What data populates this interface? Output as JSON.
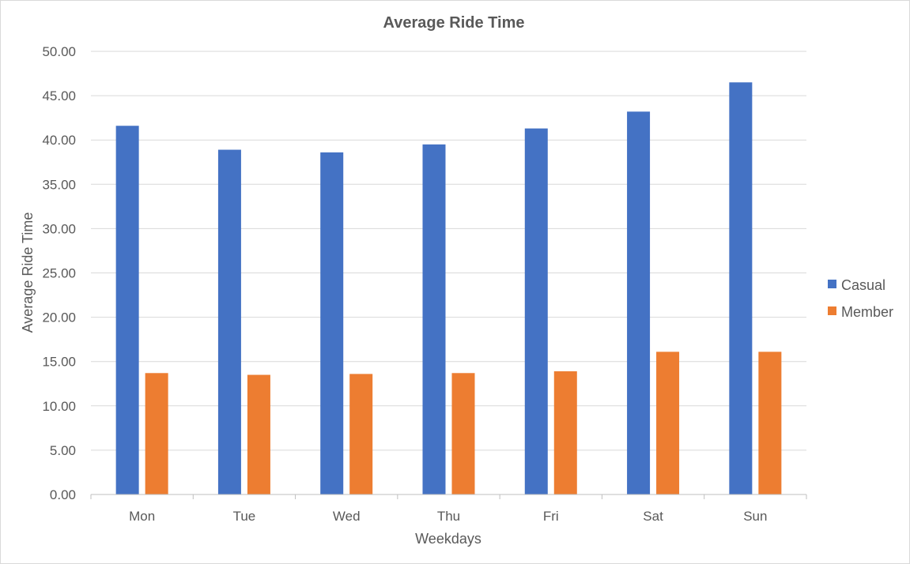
{
  "chart_data": {
    "type": "bar",
    "title": "Average Ride Time",
    "xlabel": "Weekdays",
    "ylabel": "Average Ride Time",
    "categories": [
      "Mon",
      "Tue",
      "Wed",
      "Thu",
      "Fri",
      "Sat",
      "Sun"
    ],
    "series": [
      {
        "name": "Casual",
        "color": "#4472C4",
        "values": [
          41.6,
          38.9,
          38.6,
          39.5,
          41.3,
          43.2,
          46.5
        ]
      },
      {
        "name": "Member",
        "color": "#ED7D31",
        "values": [
          13.7,
          13.5,
          13.6,
          13.7,
          13.9,
          16.1,
          16.1
        ]
      }
    ],
    "ylim": [
      0,
      50
    ],
    "yticks": [
      "0.00",
      "5.00",
      "10.00",
      "15.00",
      "20.00",
      "25.00",
      "30.00",
      "35.00",
      "40.00",
      "45.00",
      "50.00"
    ],
    "grid": true,
    "legend": "right"
  }
}
